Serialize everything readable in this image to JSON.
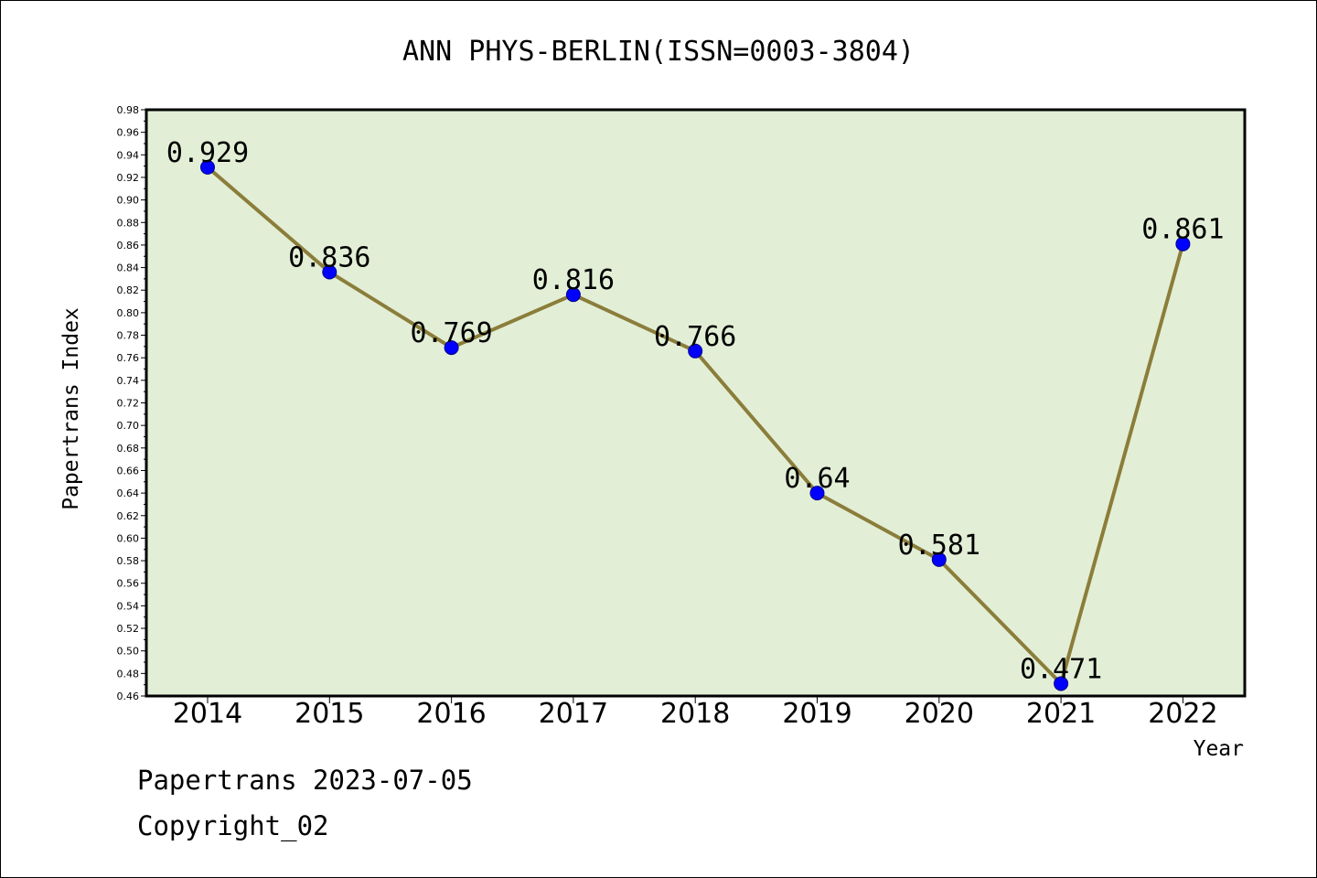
{
  "chart_data": {
    "type": "line",
    "title": "ANN PHYS-BERLIN(ISSN=0003-3804)",
    "xlabel": "Year",
    "ylabel": "Papertrans Index",
    "categories": [
      "2014",
      "2015",
      "2016",
      "2017",
      "2018",
      "2019",
      "2020",
      "2021",
      "2022"
    ],
    "values": [
      0.929,
      0.836,
      0.769,
      0.816,
      0.766,
      0.64,
      0.581,
      0.471,
      0.861
    ],
    "data_labels": [
      "0.929",
      "0.836",
      "0.769",
      "0.816",
      "0.766",
      "0.64",
      "0.581",
      "0.471",
      "0.861"
    ],
    "ylim": [
      0.46,
      0.98
    ],
    "yticks": [
      "0.46",
      "0.48",
      "0.50",
      "0.52",
      "0.54",
      "0.56",
      "0.58",
      "0.60",
      "0.62",
      "0.64",
      "0.66",
      "0.68",
      "0.70",
      "0.72",
      "0.74",
      "0.76",
      "0.78",
      "0.80",
      "0.82",
      "0.84",
      "0.86",
      "0.88",
      "0.90",
      "0.92",
      "0.94",
      "0.96",
      "0.98"
    ],
    "grid": false,
    "legend": "none",
    "colors": {
      "plot_background": "#e2efd6",
      "line": "#8b7d3a",
      "marker": "#0000ff"
    }
  },
  "footer": {
    "line1": "Papertrans 2023-07-05",
    "line2": "Copyright_02"
  }
}
